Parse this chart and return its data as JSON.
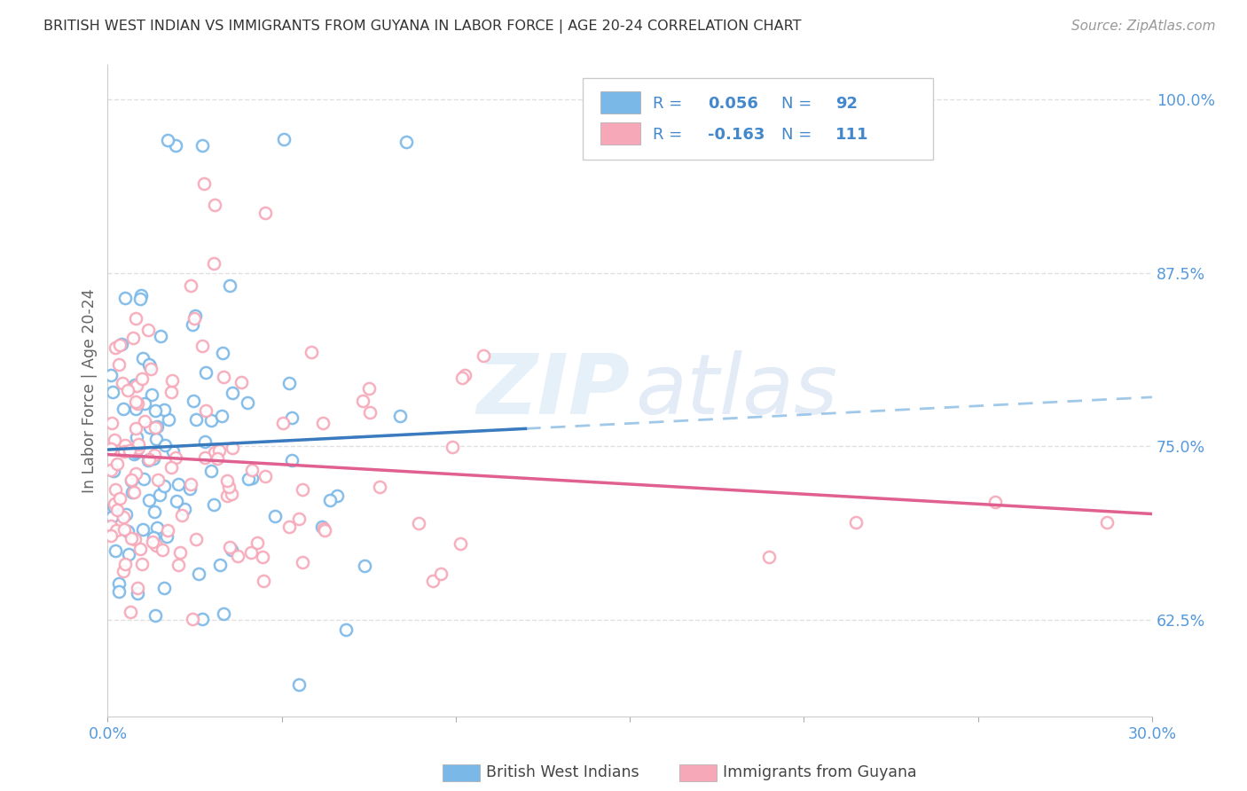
{
  "title": "BRITISH WEST INDIAN VS IMMIGRANTS FROM GUYANA IN LABOR FORCE | AGE 20-24 CORRELATION CHART",
  "source": "Source: ZipAtlas.com",
  "ylabel": "In Labor Force | Age 20-24",
  "xlim": [
    0.0,
    0.3
  ],
  "ylim": [
    0.555,
    1.025
  ],
  "yticks": [
    0.625,
    0.75,
    0.875,
    1.0
  ],
  "ytick_labels": [
    "62.5%",
    "75.0%",
    "87.5%",
    "100.0%"
  ],
  "xticks": [
    0.0,
    0.05,
    0.1,
    0.15,
    0.2,
    0.25,
    0.3
  ],
  "xtick_labels": [
    "0.0%",
    "",
    "",
    "",
    "",
    "",
    "30.0%"
  ],
  "blue_scatter_color": "#7ab8e8",
  "pink_scatter_color": "#f7a8b8",
  "blue_line_color": "#3a7abf",
  "pink_line_color": "#e06090",
  "dashed_line_color": "#a0c8e8",
  "grid_color": "#e0e0e0",
  "title_color": "#333333",
  "source_color": "#999999",
  "axis_label_color": "#666666",
  "tick_color": "#5599dd",
  "legend_text_color": "#4488cc",
  "R_blue": 0.056,
  "N_blue": 92,
  "R_pink": -0.163,
  "N_pink": 111,
  "legend_label_blue": "British West Indians",
  "legend_label_pink": "Immigrants from Guyana",
  "watermark_zip": "ZIP",
  "watermark_atlas": "atlas"
}
